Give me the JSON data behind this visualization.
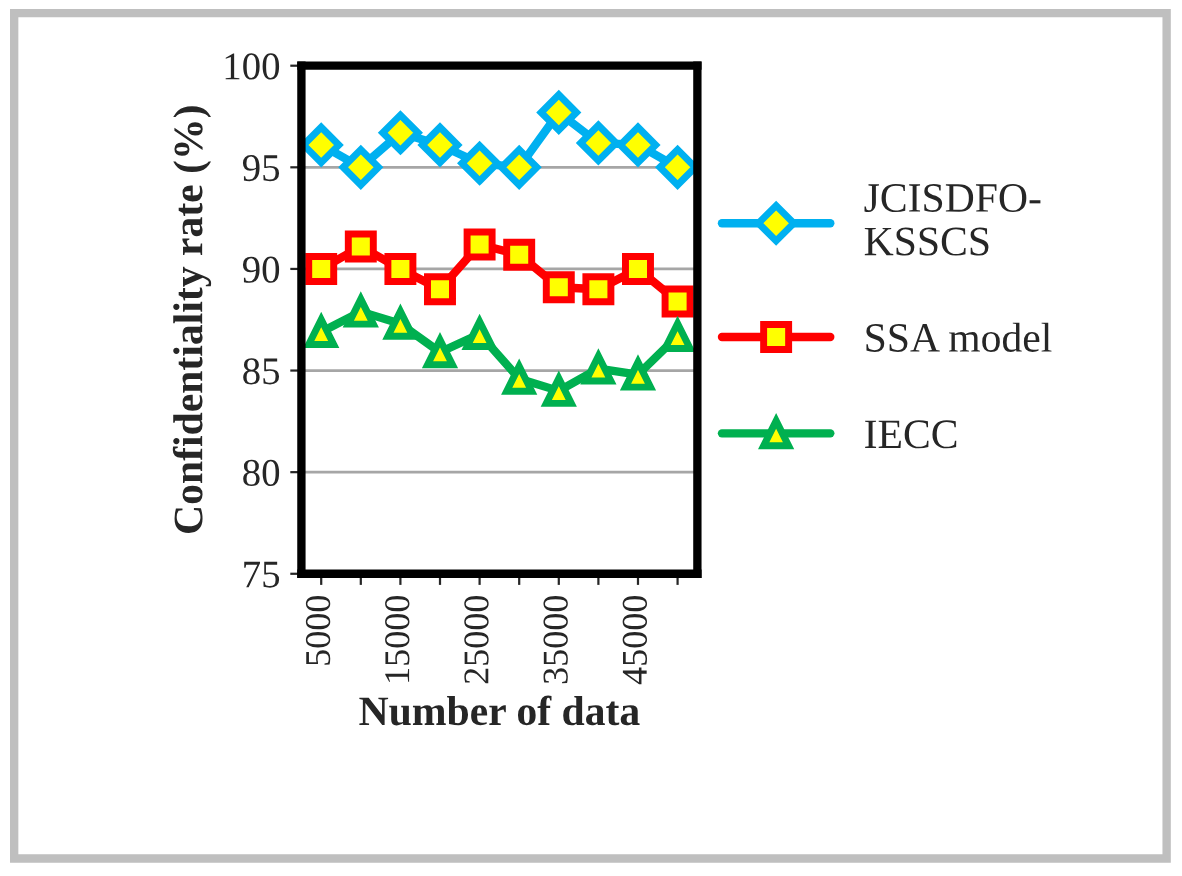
{
  "chart_data": {
    "type": "line",
    "xlabel": "Number of data",
    "ylabel": "Confidentiality rate (%)",
    "categories": [
      "5000",
      null,
      "15000",
      null,
      "25000",
      null,
      "35000",
      null,
      "45000",
      null
    ],
    "series": [
      {
        "name": "JCISDFO-\nKSSCS",
        "color": "#00b0f0",
        "marker": "diamond",
        "values": [
          96.1,
          95.0,
          96.7,
          96.1,
          95.2,
          95.0,
          97.7,
          96.2,
          96.1,
          95.0
        ]
      },
      {
        "name": "SSA model",
        "color": "#ff0000",
        "marker": "square",
        "values": [
          90.0,
          91.1,
          90.0,
          89.0,
          91.2,
          90.7,
          89.1,
          89.0,
          90.0,
          88.4
        ]
      },
      {
        "name": "IECC",
        "color": "#00b050",
        "marker": "triangle",
        "values": [
          86.9,
          87.9,
          87.3,
          85.9,
          86.8,
          84.6,
          84.0,
          85.1,
          84.8,
          86.7
        ]
      }
    ],
    "ylim": [
      75,
      100
    ],
    "yticks": [
      75,
      80,
      85,
      90,
      95,
      100
    ],
    "grid": "y",
    "legend": "right",
    "line_style": "solid"
  }
}
